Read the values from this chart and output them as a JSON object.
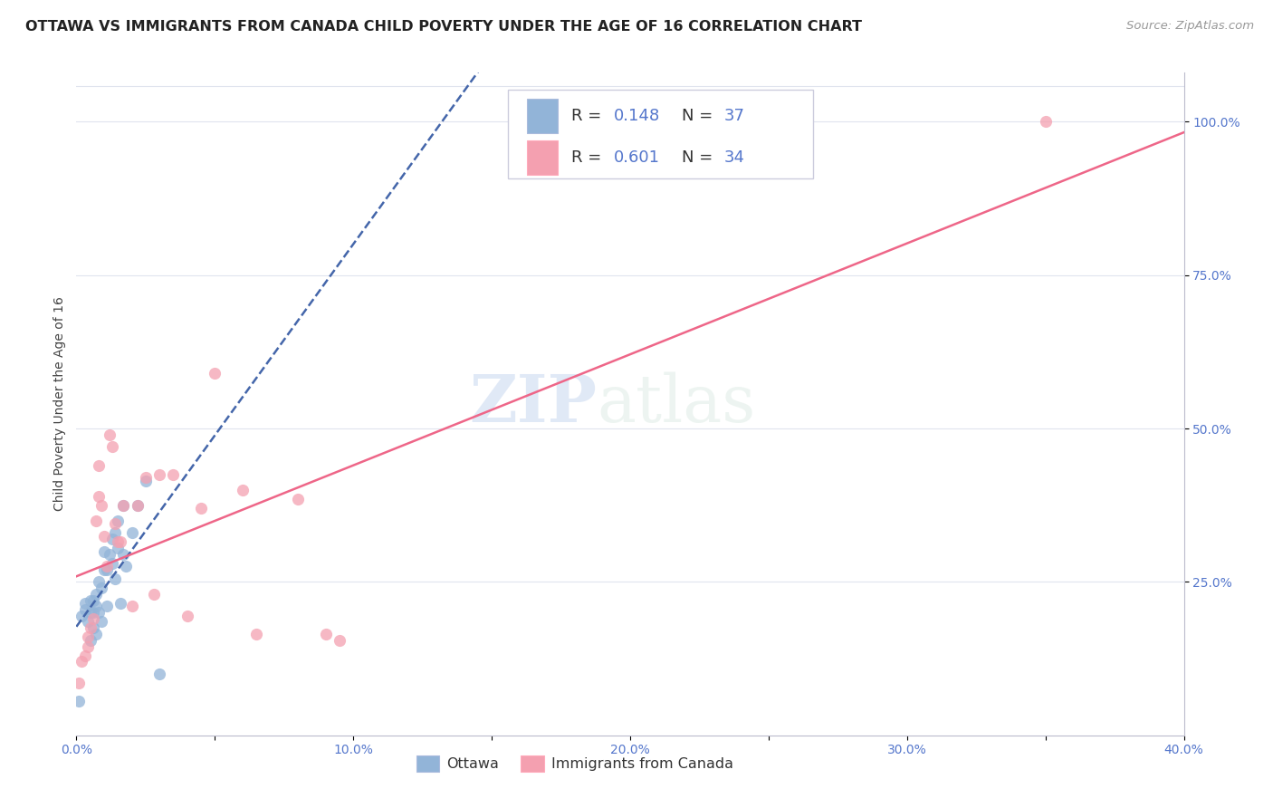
{
  "title": "OTTAWA VS IMMIGRANTS FROM CANADA CHILD POVERTY UNDER THE AGE OF 16 CORRELATION CHART",
  "source": "Source: ZipAtlas.com",
  "ylabel": "Child Poverty Under the Age of 16",
  "xmin": 0.0,
  "xmax": 0.4,
  "ymin": 0.0,
  "ymax": 1.08,
  "xtick_vals": [
    0.0,
    0.05,
    0.1,
    0.15,
    0.2,
    0.25,
    0.3,
    0.35,
    0.4
  ],
  "xtick_labels": [
    "0.0%",
    "",
    "10.0%",
    "",
    "20.0%",
    "",
    "30.0%",
    "",
    "40.0%"
  ],
  "ytick_vals_right": [
    0.25,
    0.5,
    0.75,
    1.0
  ],
  "ytick_labels_right": [
    "25.0%",
    "50.0%",
    "75.0%",
    "100.0%"
  ],
  "series1_label": "Ottawa",
  "series2_label": "Immigrants from Canada",
  "color_blue": "#92B4D8",
  "color_pink": "#F4A0B0",
  "color_blue_line": "#4466AA",
  "color_pink_line": "#EE6688",
  "background_color": "#FFFFFF",
  "grid_color": "#E0E4EE",
  "watermark_zip": "ZIP",
  "watermark_atlas": "atlas",
  "ottawa_x": [
    0.001,
    0.002,
    0.003,
    0.003,
    0.004,
    0.005,
    0.005,
    0.006,
    0.006,
    0.006,
    0.007,
    0.007,
    0.007,
    0.008,
    0.008,
    0.009,
    0.009,
    0.01,
    0.01,
    0.011,
    0.011,
    0.012,
    0.013,
    0.013,
    0.014,
    0.014,
    0.015,
    0.015,
    0.016,
    0.017,
    0.017,
    0.018,
    0.02,
    0.022,
    0.025,
    0.03,
    0.005
  ],
  "ottawa_y": [
    0.055,
    0.195,
    0.205,
    0.215,
    0.185,
    0.2,
    0.22,
    0.175,
    0.2,
    0.22,
    0.165,
    0.21,
    0.23,
    0.2,
    0.25,
    0.185,
    0.24,
    0.27,
    0.3,
    0.21,
    0.27,
    0.295,
    0.28,
    0.32,
    0.255,
    0.33,
    0.305,
    0.35,
    0.215,
    0.295,
    0.375,
    0.275,
    0.33,
    0.375,
    0.415,
    0.1,
    0.155
  ],
  "immigrants_x": [
    0.001,
    0.002,
    0.003,
    0.004,
    0.004,
    0.005,
    0.006,
    0.007,
    0.008,
    0.008,
    0.009,
    0.01,
    0.011,
    0.012,
    0.013,
    0.014,
    0.015,
    0.016,
    0.017,
    0.02,
    0.022,
    0.025,
    0.028,
    0.03,
    0.035,
    0.04,
    0.045,
    0.05,
    0.06,
    0.065,
    0.08,
    0.09,
    0.095,
    0.35
  ],
  "immigrants_y": [
    0.085,
    0.12,
    0.13,
    0.145,
    0.16,
    0.175,
    0.19,
    0.35,
    0.39,
    0.44,
    0.375,
    0.325,
    0.275,
    0.49,
    0.47,
    0.345,
    0.315,
    0.315,
    0.375,
    0.21,
    0.375,
    0.42,
    0.23,
    0.425,
    0.425,
    0.195,
    0.37,
    0.59,
    0.4,
    0.165,
    0.385,
    0.165,
    0.155,
    1.0
  ],
  "r1": 0.148,
  "n1": 37,
  "r2": 0.601,
  "n2": 34,
  "title_fontsize": 11.5,
  "axis_fontsize": 10,
  "tick_color": "#5577CC",
  "legend_fontsize": 13
}
